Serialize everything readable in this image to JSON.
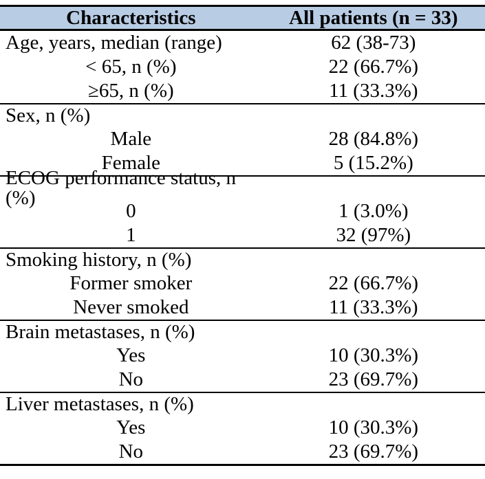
{
  "table": {
    "colors": {
      "header_bg": "#b8cce4",
      "border": "#000000",
      "text": "#000000"
    },
    "header": {
      "col1": "Characteristics",
      "col2": "All patients (n = 33)"
    },
    "rows": [
      {
        "label": "Age, years, median (range)",
        "value": "62 (38-73)"
      },
      {
        "label": "< 65, n (%)",
        "value": "22 (66.7%)"
      },
      {
        "label": "≥65, n (%)",
        "value": "11 (33.3%)"
      },
      {
        "label": "Sex, n (%)",
        "value": ""
      },
      {
        "label": "Male",
        "value": "28 (84.8%)"
      },
      {
        "label": "Female",
        "value": "5 (15.2%)"
      },
      {
        "label": "ECOG performance status, n (%)",
        "value": ""
      },
      {
        "label": "0",
        "value": "1 (3.0%)"
      },
      {
        "label": "1",
        "value": "32 (97%)"
      },
      {
        "label": "Smoking history, n (%)",
        "value": ""
      },
      {
        "label": "Former smoker",
        "value": "22 (66.7%)"
      },
      {
        "label": "Never smoked",
        "value": "11 (33.3%)"
      },
      {
        "label": "Brain metastases, n (%)",
        "value": ""
      },
      {
        "label": "Yes",
        "value": "10 (30.3%)"
      },
      {
        "label": "No",
        "value": "23 (69.7%)"
      },
      {
        "label": "Liver metastases, n (%)",
        "value": ""
      },
      {
        "label": "Yes",
        "value": "10 (30.3%)"
      },
      {
        "label": "No",
        "value": "23 (69.7%)"
      }
    ]
  }
}
